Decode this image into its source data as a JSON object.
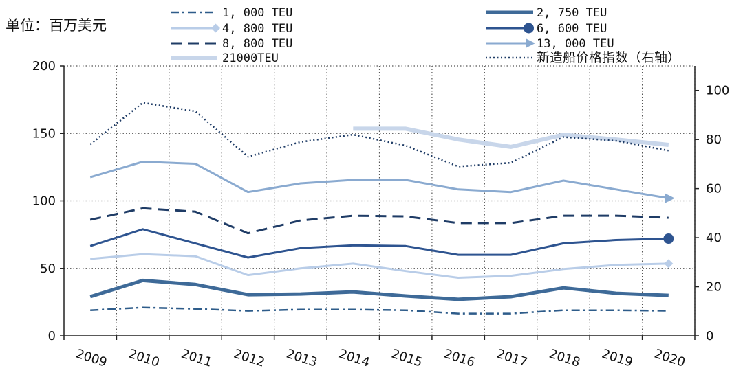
{
  "chart_data": {
    "type": "line",
    "unit_label": "单位：百万美元",
    "categories": [
      "2009",
      "2010",
      "2011",
      "2012",
      "2013",
      "2014",
      "2015",
      "2016",
      "2017",
      "2018",
      "2019",
      "2020"
    ],
    "y_left": {
      "min": 0,
      "max": 200,
      "ticks": [
        0,
        50,
        100,
        150,
        200
      ]
    },
    "y_right": {
      "min": 0,
      "max": 110,
      "ticks": [
        0,
        20,
        40,
        60,
        80,
        100
      ]
    },
    "grid": true,
    "legend_position": "top",
    "series": [
      {
        "name": "1, 000 TEU",
        "axis": "left",
        "color": "#2e5c8a",
        "style": "dashdot",
        "marker": "none",
        "values": [
          19,
          21,
          20,
          18.5,
          19.5,
          19.5,
          19,
          16.5,
          16.5,
          19,
          19,
          18.5
        ]
      },
      {
        "name": "2, 750 TEU",
        "axis": "left",
        "color": "#3e6a98",
        "style": "thick",
        "marker": "none",
        "values": [
          29,
          41,
          38,
          30.5,
          31,
          32.5,
          29.5,
          27,
          29,
          35.5,
          31.5,
          30
        ]
      },
      {
        "name": "4, 800 TEU",
        "axis": "left",
        "color": "#b9cde8",
        "style": "solid",
        "marker": "diamond",
        "values": [
          57,
          60.5,
          59,
          45,
          50,
          53.5,
          48,
          43,
          44.5,
          49.5,
          52.5,
          53.5
        ]
      },
      {
        "name": "6, 600 TEU",
        "axis": "left",
        "color": "#2e5490",
        "style": "solid",
        "marker": "circle",
        "values": [
          66.5,
          79,
          68.5,
          58,
          65,
          67,
          66.5,
          60,
          60,
          68.5,
          71,
          72
        ]
      },
      {
        "name": "8, 800 TEU",
        "axis": "left",
        "color": "#1f3c66",
        "style": "dashed",
        "marker": "none",
        "values": [
          86,
          94.5,
          92,
          76,
          85.5,
          89,
          88.5,
          83.5,
          83.5,
          89,
          89,
          87.5
        ]
      },
      {
        "name": "13, 000 TEU",
        "axis": "left",
        "color": "#8aaad0",
        "style": "solid",
        "marker": "arrow",
        "values": [
          117.5,
          129,
          127.5,
          106.5,
          113,
          115.5,
          115.5,
          108.5,
          106.5,
          115,
          108.5,
          102
        ]
      },
      {
        "name": "21000TEU",
        "axis": "left",
        "color": "#c8d6ea",
        "style": "thick",
        "marker": "none",
        "values": [
          null,
          null,
          null,
          null,
          null,
          153.5,
          153.5,
          145.5,
          140,
          149,
          145.5,
          141.5
        ]
      },
      {
        "name": "新造船价格指数（右轴）",
        "axis": "right",
        "color": "#1f3c66",
        "style": "dotted",
        "marker": "none",
        "values": [
          78,
          95,
          91.5,
          73,
          79,
          82,
          77.5,
          69,
          70.5,
          81,
          79.5,
          75.5
        ]
      }
    ]
  }
}
